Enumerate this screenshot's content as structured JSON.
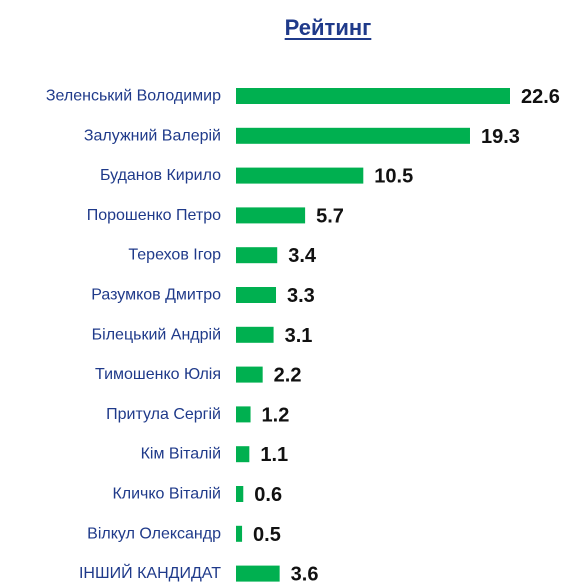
{
  "chart_data": {
    "type": "bar",
    "orientation": "horizontal",
    "title": "Рейтинг",
    "categories": [
      "Зеленський Володимир",
      "Залужний Валерій",
      "Буданов Кирило",
      "Порошенко Петро",
      "Терехов Ігор",
      "Разумков Дмитро",
      "Білецький Андрій",
      "Тимошенко Юлія",
      "Притула Сергій",
      "Кім Віталій",
      "Кличко Віталій",
      "Вілкул Олександр",
      "ІНШИЙ КАНДИДАТ"
    ],
    "values": [
      22.6,
      19.3,
      10.5,
      5.7,
      3.4,
      3.3,
      3.1,
      2.2,
      1.2,
      1.1,
      0.6,
      0.5,
      3.6
    ],
    "value_labels": [
      "22.6",
      "19.3",
      "10.5",
      "5.7",
      "3.4",
      "3.3",
      "3.1",
      "2.2",
      "1.2",
      "1.1",
      "0.6",
      "0.5",
      "3.6"
    ],
    "xlim": [
      0,
      22.6
    ],
    "grid": false,
    "legend": "none"
  },
  "colors": {
    "bar": "#00b050",
    "title": "#1f3a8a",
    "category_label": "#1f3a8a",
    "value_label": "#111111"
  }
}
